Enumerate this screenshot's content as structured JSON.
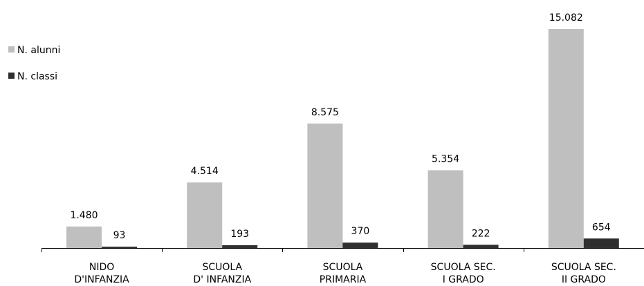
{
  "chart_data": {
    "type": "bar",
    "title": "",
    "xlabel": "",
    "ylabel": "",
    "grid": false,
    "legend_position": "top-left",
    "categories": [
      [
        "NIDO",
        "D'INFANZIA"
      ],
      [
        "SCUOLA",
        "D' INFANZIA"
      ],
      [
        "SCUOLA",
        "PRIMARIA"
      ],
      [
        "SCUOLA SEC.",
        "I GRADO"
      ],
      [
        "SCUOLA SEC.",
        "II GRADO"
      ]
    ],
    "series": [
      {
        "name": "N. alunni",
        "color": "#bfbfbf",
        "values": [
          1480,
          4514,
          8575,
          5354,
          15082
        ],
        "labels": [
          "1.480",
          "4.514",
          "8.575",
          "5.354",
          "15.082"
        ]
      },
      {
        "name": "N. classi",
        "color": "#2f2f2f",
        "values": [
          93,
          193,
          370,
          222,
          654
        ],
        "labels": [
          "93",
          "193",
          "370",
          "222",
          "654"
        ]
      }
    ]
  }
}
